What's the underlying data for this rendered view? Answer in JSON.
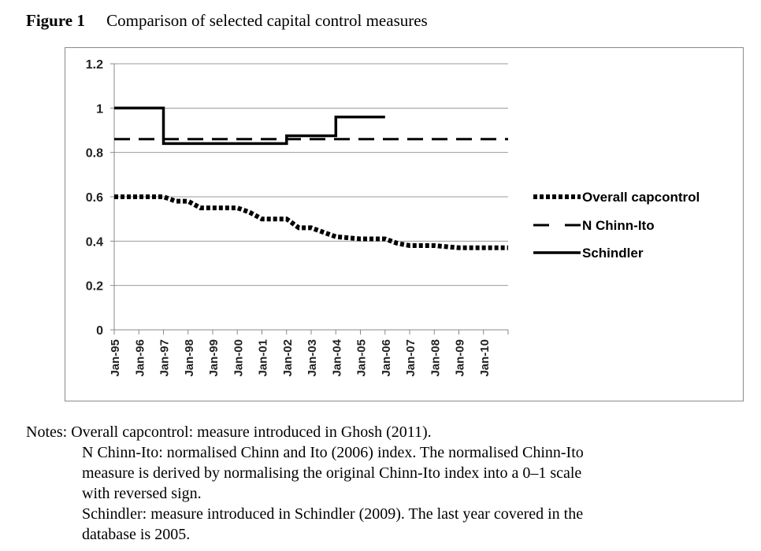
{
  "figure": {
    "label": "Figure 1",
    "title": "Comparison of selected capital control measures"
  },
  "chart_data": {
    "type": "line",
    "x_labels": [
      "Jan-95",
      "Jan-96",
      "Jan-97",
      "Jan-98",
      "Jan-99",
      "Jan-00",
      "Jan-01",
      "Jan-02",
      "Jan-03",
      "Jan-04",
      "Jan-05",
      "Jan-06",
      "Jan-07",
      "Jan-08",
      "Jan-09",
      "Jan-10"
    ],
    "x_range": [
      1995,
      2011
    ],
    "ylim": [
      0,
      1.2
    ],
    "yticks": [
      "0",
      "0.2",
      "0.4",
      "0.6",
      "0.8",
      "1",
      "1.2"
    ],
    "grid": true,
    "legend_position": "right",
    "series": [
      {
        "name": "Overall capcontrol",
        "style": "dotted",
        "points": [
          [
            1995,
            0.6
          ],
          [
            1996,
            0.6
          ],
          [
            1997,
            0.6
          ],
          [
            1997.5,
            0.58
          ],
          [
            1998,
            0.58
          ],
          [
            1998.5,
            0.55
          ],
          [
            1999,
            0.55
          ],
          [
            2000,
            0.55
          ],
          [
            2000.5,
            0.53
          ],
          [
            2001,
            0.5
          ],
          [
            2002,
            0.5
          ],
          [
            2002.5,
            0.46
          ],
          [
            2003,
            0.46
          ],
          [
            2003.5,
            0.44
          ],
          [
            2004,
            0.42
          ],
          [
            2005,
            0.41
          ],
          [
            2006,
            0.41
          ],
          [
            2006.5,
            0.39
          ],
          [
            2007,
            0.38
          ],
          [
            2008,
            0.38
          ],
          [
            2009,
            0.37
          ],
          [
            2010,
            0.37
          ],
          [
            2011,
            0.37
          ]
        ]
      },
      {
        "name": "N Chinn-Ito",
        "style": "dashed",
        "points": [
          [
            1995,
            0.86
          ],
          [
            2011,
            0.86
          ]
        ]
      },
      {
        "name": "Schindler",
        "style": "solid",
        "points": [
          [
            1995,
            1.0
          ],
          [
            1997,
            1.0
          ],
          [
            1997,
            0.84
          ],
          [
            2002,
            0.84
          ],
          [
            2002,
            0.875
          ],
          [
            2004,
            0.875
          ],
          [
            2004,
            0.96
          ],
          [
            2006,
            0.96
          ]
        ]
      }
    ]
  },
  "notes": {
    "line1": "Notes: Overall capcontrol: measure introduced in Ghosh (2011).",
    "line2": "N Chinn-Ito: normalised Chinn and Ito (2006) index. The normalised Chinn-Ito",
    "line3": "measure is derived by normalising the original Chinn-Ito index into a 0–1 scale",
    "line4": "with reversed sign.",
    "line5": "Schindler: measure introduced in Schindler (2009). The last year covered in the",
    "line6": "database is 2005."
  }
}
